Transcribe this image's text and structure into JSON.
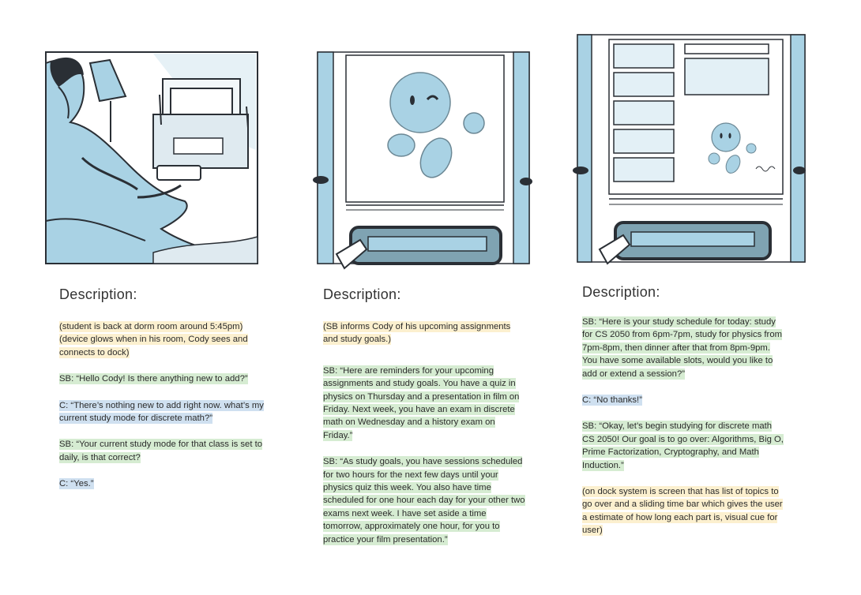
{
  "colors": {
    "narration_highlight": "#fcf0cf",
    "smartbuddy_highlight": "#d6ecd2",
    "cody_highlight": "#cfe0f0",
    "sketch_blue": "#a9d2e4",
    "ink": "#2a2f35"
  },
  "panels": [
    {
      "heading": "Description:",
      "paragraphs": [
        {
          "text": "(student is back at dorm room around 5:45pm) (device glows when in his room, Cody sees and connects to dock)",
          "style": "yellow"
        },
        {
          "text": "SB: “Hello Cody! Is there anything new to add?”",
          "style": "green"
        },
        {
          "text": "C: “There’s nothing new to add right now. what’s my current study mode for discrete math?”",
          "style": "blue"
        },
        {
          "text": "SB: “Your current study mode for that class is set to daily, is that correct?",
          "style": "green"
        },
        {
          "text": "C: “Yes.”",
          "style": "blue"
        }
      ]
    },
    {
      "heading": "Description:",
      "paragraphs": [
        {
          "text": "(SB informs Cody of his upcoming assignments and study goals.)",
          "style": "yellow"
        },
        {
          "text": "SB: “Here are reminders for your upcoming assignments and study goals. You have a quiz in physics on Thursday and a presentation in film on Friday. Next week, you have an exam in discrete math on Wednesday and a history exam on Friday.”",
          "style": "green"
        },
        {
          "text": "SB: “As study goals, you have sessions scheduled for two hours for the next few days until your physics quiz this week. You also have time scheduled for one hour each day for your other two exams next week. I have set aside a time tomorrow, approximately one hour, for you to practice your film presentation.”",
          "style": "green"
        }
      ]
    },
    {
      "heading": "Description:",
      "paragraphs": [
        {
          "text": "SB: “Here is your study schedule for today: study for CS 2050 from 6pm-7pm, study for physics from 7pm-8pm, then dinner after that from 8pm-9pm. You have some available slots, would you like to add or extend a session?”",
          "style": "green"
        },
        {
          "text": "C: “No thanks!”",
          "style": "blue"
        },
        {
          "text": "SB: “Okay, let’s begin studying for discrete math CS 2050! Our goal is to go over: Algorithms, Big O, Prime Factorization, Cryptography, and Math Induction.”",
          "style": "green"
        },
        {
          "text": "(on dock system is screen that has list of topics to go over and a sliding time bar which gives the user a estimate of how long each part is, visual cue for user)",
          "style": "yellow"
        }
      ]
    }
  ]
}
